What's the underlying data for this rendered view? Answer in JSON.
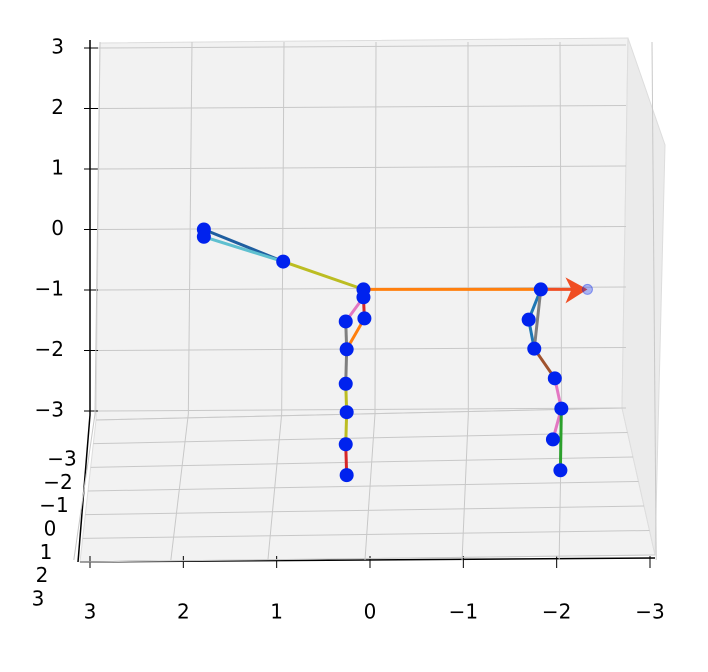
{
  "chart_data": {
    "type": "skeleton3d",
    "xticks": [
      {
        "value": 3,
        "label": "3"
      },
      {
        "value": 2,
        "label": "2"
      },
      {
        "value": 1,
        "label": "1"
      },
      0,
      {
        "value": -1,
        "label": "−1"
      },
      {
        "value": -2,
        "label": "−2"
      },
      {
        "value": -3,
        "label": "−3"
      }
    ],
    "xlim": [
      3,
      -3
    ],
    "zticks": [
      {
        "value": -3,
        "label": "−3"
      },
      {
        "value": -2,
        "label": "−2"
      },
      {
        "value": -1,
        "label": "−1"
      },
      0,
      1,
      2,
      3
    ],
    "zlim": [
      -3,
      3
    ],
    "yticks": [
      {
        "value": -3,
        "label": "−3"
      },
      {
        "value": -2,
        "label": "−2"
      },
      {
        "value": -1,
        "label": "−1"
      },
      0,
      1,
      2,
      3
    ],
    "grid": true,
    "point_color": "#0022ee",
    "x": [
      1.78,
      1.78,
      0.93,
      0.07,
      0.07,
      0.06,
      0.26,
      0.25,
      0.26,
      0.25,
      0.26,
      0.25,
      -1.83,
      -1.7,
      -1.76,
      -1.98,
      -2.05,
      -1.96,
      -2.04
    ],
    "z": [
      0,
      -0.12,
      -0.53,
      -0.99,
      -1.12,
      -1.47,
      -1.52,
      -1.98,
      -2.55,
      -3.02,
      -3.55,
      -4.06,
      -0.99,
      -1.49,
      -1.97,
      -2.46,
      -2.96,
      -3.47,
      -3.98
    ],
    "edges": [
      [
        0,
        2
      ],
      [
        1,
        2
      ],
      [
        2,
        3
      ],
      [
        3,
        12
      ],
      [
        3,
        4
      ],
      [
        4,
        6
      ],
      [
        4,
        5
      ],
      [
        5,
        7
      ],
      [
        6,
        7
      ],
      [
        7,
        8
      ],
      [
        8,
        9
      ],
      [
        9,
        10
      ],
      [
        10,
        11
      ],
      [
        12,
        13
      ],
      [
        13,
        14
      ],
      [
        12,
        14
      ],
      [
        14,
        15
      ],
      [
        15,
        16
      ],
      [
        16,
        17
      ],
      [
        16,
        18
      ]
    ],
    "edge_colors": [
      "#1f5fa0",
      "#5fc0d0",
      "#bcbd22",
      "#ff7f0e",
      "#e377c2",
      "#e377c2",
      "#d62728",
      "#ff7f0e",
      "#7f7f7f",
      "#7f7f7f",
      "#bcbd22",
      "#bcbd22",
      "#d62728",
      "#1f77b4",
      "#1f77b4",
      "#7f7f7f",
      "#a0522d",
      "#e377c2",
      "#e377c2",
      "#2ca02c"
    ],
    "arrow": {
      "x": [
        -1.83,
        -2.33
      ],
      "z": [
        -0.99,
        -0.99
      ],
      "color": "#f04e23"
    }
  }
}
